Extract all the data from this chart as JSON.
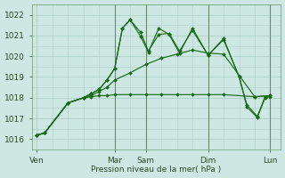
{
  "background_color": "#cde8e2",
  "grid_color": "#aed0ca",
  "line_color": "#1a6b1a",
  "marker_color": "#1a6b1a",
  "xlabel": "Pression niveau de la mer( hPa )",
  "ylim": [
    1015.5,
    1022.5
  ],
  "yticks": [
    1016,
    1017,
    1018,
    1019,
    1020,
    1021,
    1022
  ],
  "xtick_labels": [
    "Ven",
    "Mar",
    "Sam",
    "Dim",
    "Lun"
  ],
  "xtick_positions": [
    0,
    30,
    42,
    66,
    90
  ],
  "vline_positions": [
    30,
    42,
    66,
    90
  ],
  "series": {
    "flat": {
      "x": [
        0,
        3,
        12,
        18,
        21,
        24,
        27,
        30,
        36,
        42,
        48,
        54,
        60,
        66,
        72,
        84,
        90
      ],
      "y": [
        1016.2,
        1016.3,
        1017.75,
        1018.0,
        1018.05,
        1018.1,
        1018.1,
        1018.15,
        1018.15,
        1018.15,
        1018.15,
        1018.15,
        1018.15,
        1018.15,
        1018.15,
        1018.05,
        1018.1
      ]
    },
    "rising": {
      "x": [
        0,
        3,
        12,
        18,
        21,
        24,
        27,
        30,
        36,
        42,
        48,
        54,
        60,
        66,
        72,
        84,
        90
      ],
      "y": [
        1016.2,
        1016.3,
        1017.75,
        1018.0,
        1018.1,
        1018.3,
        1018.5,
        1018.85,
        1019.2,
        1019.6,
        1019.9,
        1020.1,
        1020.3,
        1020.15,
        1020.1,
        1018.05,
        1018.1
      ]
    },
    "peak1": {
      "x": [
        0,
        3,
        12,
        18,
        21,
        24,
        27,
        30,
        33,
        36,
        40,
        43,
        47,
        51,
        55,
        60,
        66,
        72,
        78,
        81,
        85,
        88,
        90
      ],
      "y": [
        1016.2,
        1016.3,
        1017.75,
        1018.0,
        1018.2,
        1018.4,
        1018.85,
        1019.4,
        1021.35,
        1021.75,
        1021.15,
        1020.25,
        1021.05,
        1021.1,
        1020.25,
        1021.25,
        1020.05,
        1020.85,
        1019.0,
        1017.65,
        1017.1,
        1018.05,
        1018.1
      ]
    },
    "peak2": {
      "x": [
        0,
        3,
        12,
        18,
        21,
        24,
        27,
        30,
        33,
        36,
        40,
        43,
        47,
        51,
        55,
        60,
        66,
        72,
        78,
        81,
        85,
        88,
        90
      ],
      "y": [
        1016.2,
        1016.3,
        1017.75,
        1018.0,
        1018.2,
        1018.4,
        1018.85,
        1019.4,
        1021.35,
        1021.75,
        1020.95,
        1020.2,
        1021.35,
        1021.05,
        1020.15,
        1021.35,
        1020.05,
        1020.8,
        1019.0,
        1017.55,
        1017.05,
        1018.0,
        1018.05
      ]
    }
  }
}
